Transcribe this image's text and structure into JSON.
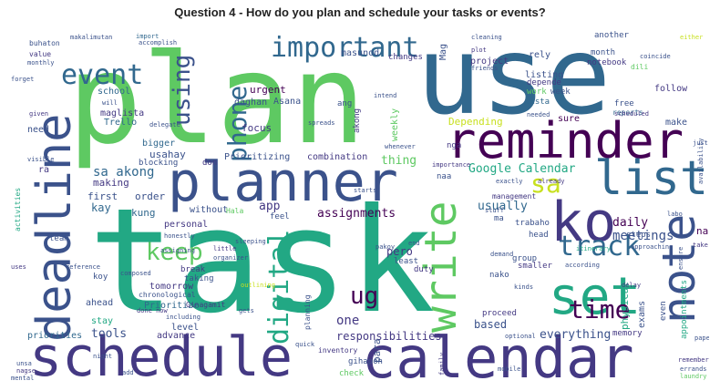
{
  "title": "Question 4 - How do you plan and schedule your tasks or events?",
  "words": {
    "task": "task",
    "plan": "plan",
    "use": "use",
    "schedule": "schedule",
    "calendar": "calendar",
    "reminder": "reminder",
    "planner": "planner",
    "deadline": "deadline",
    "list": "list",
    "ko": "ko",
    "note": "note",
    "set": "set",
    "write": "write",
    "important": "important",
    "event": "event",
    "using": "using",
    "phone": "phone",
    "digital": "digital",
    "track": "track",
    "keep": "keep",
    "time": "time",
    "sa": "sa",
    "ug": "ug",
    "google_calendar": "Google Calendar",
    "sa_akong": "sa akong",
    "meetings": "meetings",
    "assignments": "assignments",
    "responsibilities": "responsibilities",
    "everything": "everything",
    "one": "one",
    "daily": "daily",
    "usually": "usually",
    "based": "based",
    "tools": "tools",
    "physical": "physical",
    "thing": "thing",
    "app": "app",
    "kay": "kay",
    "first": "first",
    "making": "making",
    "kung": "kung",
    "order": "order",
    "na": "na",
    "para": "para",
    "pero": "pero",
    "exams": "exams",
    "focus": "focus",
    "depending": "Depending",
    "urgent": "urgent",
    "weekly": "weekly",
    "prioritizing": "Prioritizing",
    "combination": "combination",
    "usahay": "usahay",
    "bigger": "bigger",
    "personal": "personal",
    "without": "without",
    "priorities": "priorities",
    "advance": "advance",
    "level": "level",
    "stay": "stay",
    "ahead": "ahead",
    "tomorrow": "tomorrow",
    "prioritize": "Prioritize",
    "chronological": "chronological",
    "ginagamit": "Ginagamit",
    "trello": "Trello",
    "asana": "Asana",
    "maglista": "maglista",
    "daghan": "daghan",
    "school": "school",
    "need": "need",
    "ra": "ra",
    "make": "make",
    "follow": "follow",
    "sure": "sure",
    "free": "free",
    "reports": "reports",
    "notebook": "notebook",
    "month": "month",
    "listing": "listing",
    "depende": "depende",
    "lista": "lista",
    "work": "work",
    "week": "week",
    "project": "project",
    "masunod": "masunod",
    "changes": "changes",
    "mag": "Mag",
    "rely": "rely",
    "another": "another",
    "memory": "memory",
    "even": "even",
    "appointments": "appointments",
    "steps": "steps",
    "head": "head",
    "group": "group",
    "smaller": "smaller",
    "nako": "nako",
    "proceed": "proceed",
    "least": "least",
    "duty": "duty",
    "trabaho": "trabaho",
    "management": "management",
    "ma": "ma",
    "naa": "naa",
    "nga": "nga",
    "ang": "ang",
    "akong": "akong",
    "feel": "feel",
    "team": "team",
    "koy": "koy",
    "break": "break",
    "taking": "taking",
    "blocking": "blocking",
    "don": "don",
    "gihapon": "gihapon",
    "check": "check",
    "inventory": "inventory",
    "buhaton": "buhaton",
    "value": "value",
    "monthly": "monthly",
    "makalimutan": "makalimutan",
    "import": "import",
    "accomplish": "accomplish",
    "cleaning": "cleaning",
    "plot": "plot",
    "friends": "friends",
    "coincide": "coincide",
    "labo": "labo",
    "scheduled": "scheduled",
    "needed": "needed",
    "spreads": "spreads",
    "whenever": "whenever",
    "importance": "importance",
    "exactly": "exactly",
    "already": "already",
    "stuff": "stuff",
    "remember": "remember",
    "errands": "errands",
    "laundry": "laundry",
    "mobile": "mobile",
    "family": "family",
    "optional": "optional",
    "kinds": "kinds",
    "delay": "delay",
    "approaching": "approaching",
    "ensure": "ensure",
    "take": "take",
    "paper": "paper",
    "availability": "availability",
    "just": "just",
    "will": "will",
    "given": "given",
    "forget": "forget",
    "visible": "visible",
    "activities": "activities",
    "uses": "uses",
    "reference": "reference",
    "composed": "composed",
    "night": "night",
    "unsa": "unsa",
    "mental": "mental",
    "nagse": "nagse",
    "add": "add",
    "intend": "intend",
    "honestly": "honestly",
    "little": "little",
    "sleeping": "sleeping",
    "organizer": "organizer",
    "pakoy": "pakoy",
    "itinerary": "itinerary",
    "according": "according",
    "including": "including",
    "done_now": "done now",
    "gets": "gets",
    "quick": "quick",
    "planning": "planning",
    "outlining": "outlining",
    "assigning": "assigning",
    "hala": "Hala",
    "starts": "starts",
    "demand": "demand",
    "end": "end",
    "dili": "dili",
    "delegate": "delegate",
    "either": "either"
  },
  "colors": {
    "teal": "#21918c",
    "green": "#22a884",
    "lime": "#5ec962",
    "yellow": "#c8e020",
    "blue": "#31688e",
    "indigo": "#3b528b",
    "purple": "#443983",
    "dark": "#440154"
  }
}
